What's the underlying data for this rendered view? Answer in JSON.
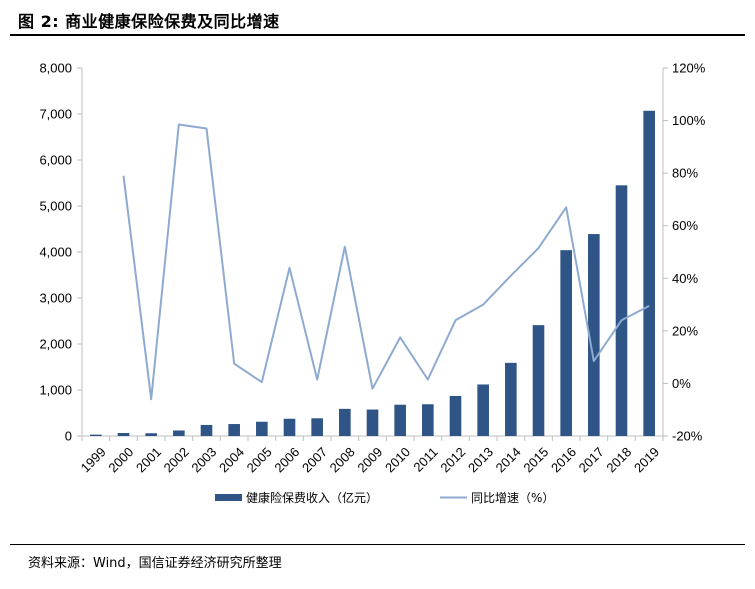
{
  "header": {
    "title": "图 2:  商业健康保险保费及同比增速"
  },
  "footer": {
    "source": "资料来源：Wind，国信证券经济研究所整理"
  },
  "colors": {
    "bar": "#2f5587",
    "line": "#8eaad0",
    "axis": "#bfbfbf",
    "text": "#000000"
  },
  "chart_data": {
    "type": "bar",
    "title": "商业健康保险保费及同比增速",
    "categories": [
      "1999",
      "2000",
      "2001",
      "2002",
      "2003",
      "2004",
      "2005",
      "2006",
      "2007",
      "2008",
      "2009",
      "2010",
      "2011",
      "2012",
      "2013",
      "2014",
      "2015",
      "2016",
      "2017",
      "2018",
      "2019"
    ],
    "series": [
      {
        "name": "健康险保费收入（亿元）",
        "kind": "bar",
        "axis": "left",
        "values": [
          30,
          65,
          60,
          120,
          240,
          260,
          310,
          375,
          385,
          590,
          575,
          680,
          690,
          870,
          1120,
          1590,
          2410,
          4040,
          4390,
          5450,
          7070
        ]
      },
      {
        "name": "同比增速（%）",
        "kind": "line",
        "axis": "right",
        "values": [
          null,
          79,
          -6,
          98.5,
          97,
          7.5,
          0.5,
          44,
          1.5,
          52,
          -2,
          17.5,
          1.5,
          24,
          30,
          41,
          51.5,
          67,
          8.5,
          24,
          29.5
        ]
      }
    ],
    "y_left": {
      "min": 0,
      "max": 8000,
      "ticks": [
        "0",
        "1,000",
        "2,000",
        "3,000",
        "4,000",
        "5,000",
        "6,000",
        "7,000",
        "8,000"
      ]
    },
    "y_right": {
      "min": -20,
      "max": 120,
      "ticks": [
        "-20%",
        "0%",
        "20%",
        "40%",
        "60%",
        "80%",
        "100%",
        "120%"
      ]
    },
    "legend_position": "bottom",
    "grid": false
  }
}
